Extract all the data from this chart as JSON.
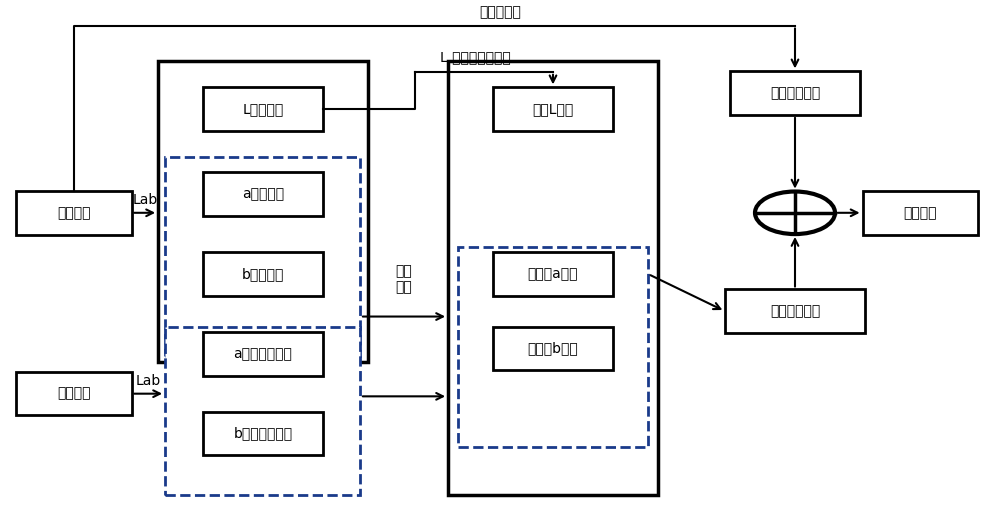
{
  "bg_color": "#ffffff",
  "line_color": "#000000",
  "dashed_color": "#1a3a8a",
  "title_text": "提取细节层",
  "label_L_linear": "L 通道的线性拉伸",
  "label_scale_move": "缩放\n移动",
  "label_lab1": "Lab",
  "label_lab2": "Lab",
  "fs": 10
}
